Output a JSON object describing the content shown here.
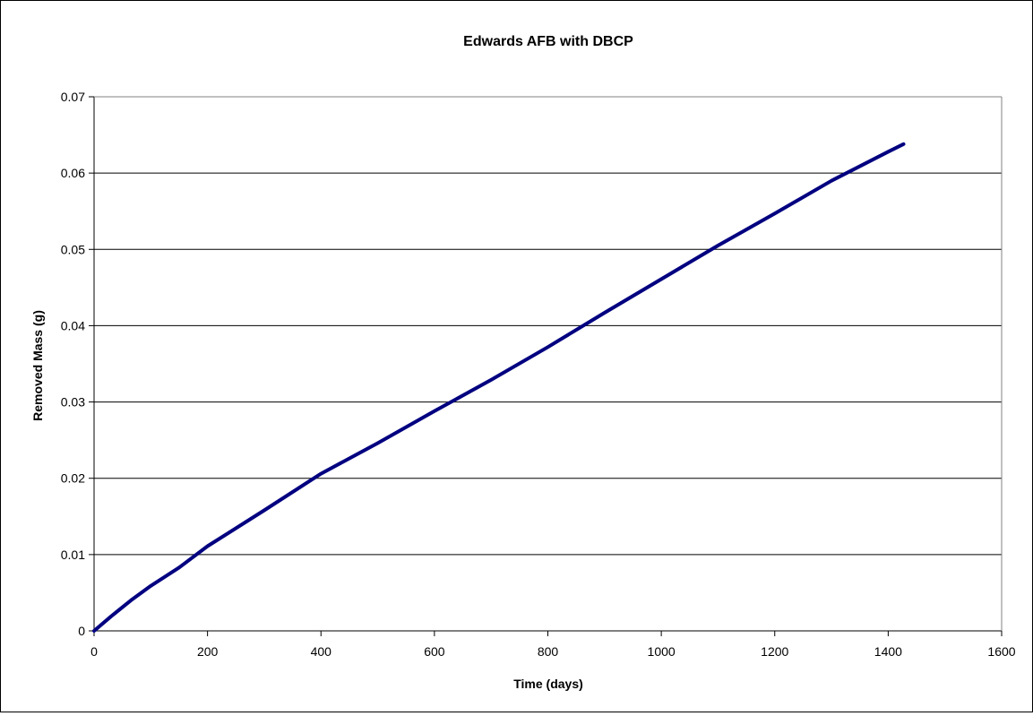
{
  "chart_data": {
    "type": "line",
    "title": "Edwards AFB with DBCP",
    "xlabel": "Time (days)",
    "ylabel": "Removed Mass (g)",
    "xlim": [
      0,
      1600
    ],
    "ylim": [
      0,
      0.07
    ],
    "x_ticks": [
      "0",
      "200",
      "400",
      "600",
      "800",
      "1000",
      "1200",
      "1400",
      "1600"
    ],
    "y_ticks": [
      "0",
      "0.01",
      "0.02",
      "0.03",
      "0.04",
      "0.05",
      "0.06",
      "0.07"
    ],
    "grid": "horizontal",
    "legend": "none",
    "series": [
      {
        "color": "#000080",
        "x": [
          0,
          30,
          65,
          100,
          150,
          200,
          300,
          400,
          500,
          600,
          700,
          800,
          900,
          1000,
          1100,
          1200,
          1300,
          1400,
          1427
        ],
        "y": [
          0,
          0.0019,
          0.004,
          0.0059,
          0.0083,
          0.0111,
          0.0158,
          0.0206,
          0.0246,
          0.0288,
          0.0329,
          0.0372,
          0.0417,
          0.0461,
          0.0505,
          0.0547,
          0.059,
          0.0628,
          0.0638
        ]
      }
    ]
  }
}
